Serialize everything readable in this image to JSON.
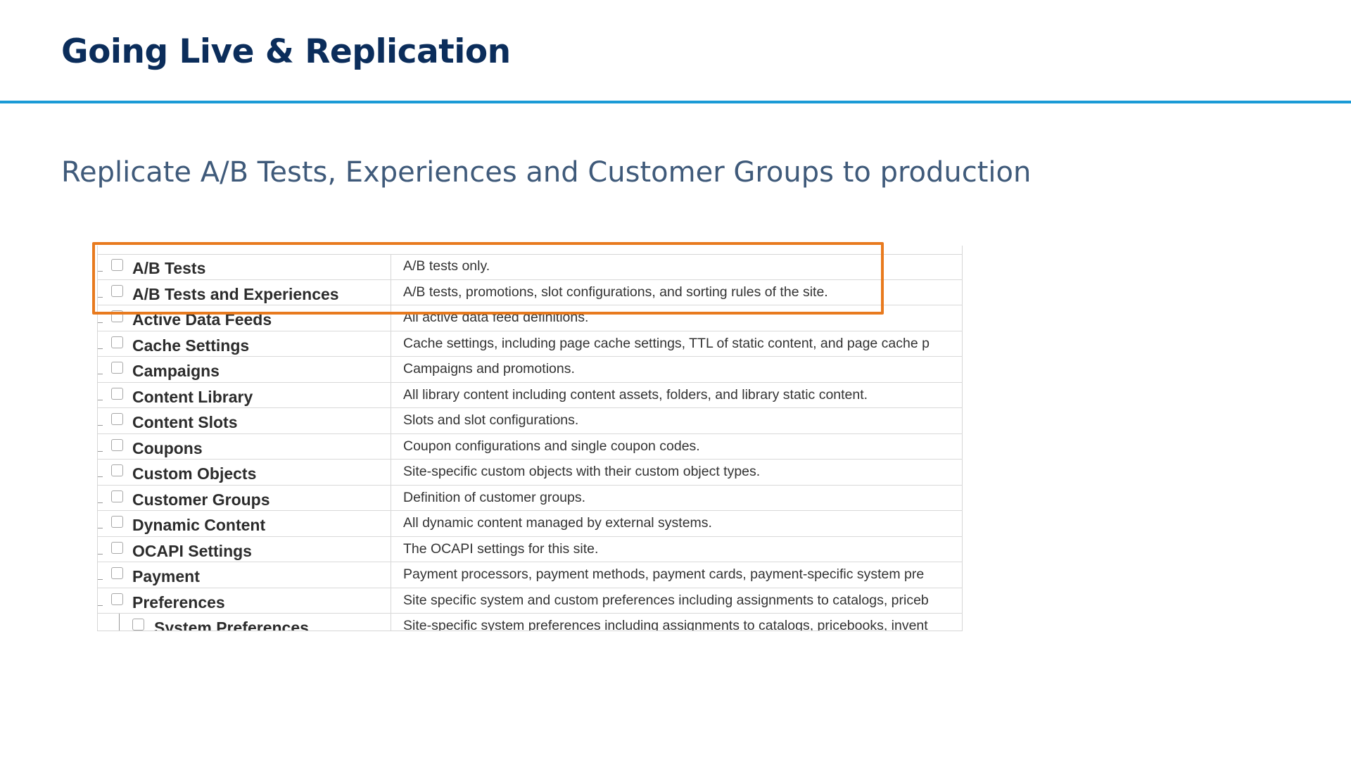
{
  "slide": {
    "title": "Going Live & Replication",
    "subtitle": "Replicate A/B Tests, Experiences and Customer Groups to production",
    "accent_color": "#1a9ad6",
    "title_color": "#0b2d5b",
    "highlight_color": "#e87a1e"
  },
  "table": {
    "rows": [
      {
        "name": "A/B Tests",
        "description": "A/B tests only.",
        "highlighted": true
      },
      {
        "name": "A/B Tests and Experiences",
        "description": "A/B tests, promotions, slot configurations, and sorting rules of the site.",
        "highlighted": true
      },
      {
        "name": "Active Data Feeds",
        "description": "All active data feed definitions."
      },
      {
        "name": "Cache Settings",
        "description": "Cache settings, including page cache settings, TTL of static content, and page cache p"
      },
      {
        "name": "Campaigns",
        "description": "Campaigns and promotions."
      },
      {
        "name": "Content Library",
        "description": "All library content including content assets, folders, and library static content."
      },
      {
        "name": "Content Slots",
        "description": "Slots and slot configurations."
      },
      {
        "name": "Coupons",
        "description": "Coupon configurations and single coupon codes."
      },
      {
        "name": "Custom Objects",
        "description": "Site-specific custom objects with their custom object types."
      },
      {
        "name": "Customer Groups",
        "description": "Definition of customer groups."
      },
      {
        "name": "Dynamic Content",
        "description": "All dynamic content managed by external systems."
      },
      {
        "name": "OCAPI Settings",
        "description": "The OCAPI settings for this site."
      },
      {
        "name": "Payment",
        "description": "Payment processors, payment methods, payment cards, payment-specific system pre"
      },
      {
        "name": "Preferences",
        "description": "Site specific system and custom preferences including assignments to catalogs, priceb"
      },
      {
        "name": "System Preferences",
        "description": "Site-specific system preferences including assignments to catalogs, pricebooks, invent",
        "child": true
      }
    ]
  }
}
